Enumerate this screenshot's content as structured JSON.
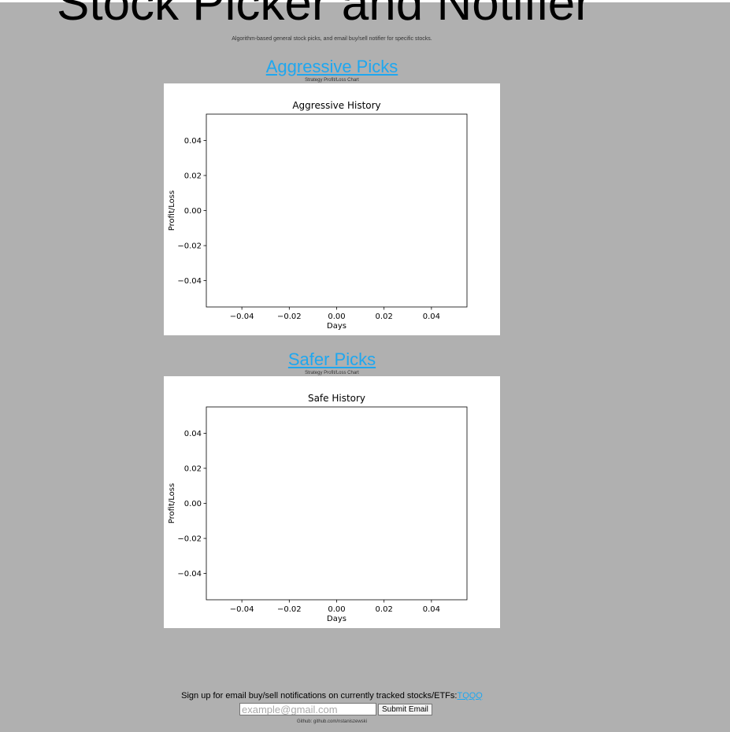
{
  "header": {
    "title": "Stock Picker and Notifier",
    "subtitle": "Algorithm-based general stock picks, and email buy/sell notifier for specific stocks."
  },
  "sections": [
    {
      "link_label": "Aggressive Picks",
      "caption": "Strategy Profit/Loss Chart"
    },
    {
      "link_label": "Safer Picks",
      "caption": "Strategy Profit/Loss Chart"
    }
  ],
  "chart_data": [
    {
      "type": "line",
      "title": "Aggressive History",
      "xlabel": "Days",
      "ylabel": "Profit/Loss",
      "xlim": [
        -0.055,
        0.055
      ],
      "ylim": [
        -0.055,
        0.055
      ],
      "xticks": [
        -0.04,
        -0.02,
        0.0,
        0.02,
        0.04
      ],
      "xtick_labels": [
        "−0.04",
        "−0.02",
        "0.00",
        "0.02",
        "0.04"
      ],
      "yticks": [
        -0.04,
        -0.02,
        0.0,
        0.02,
        0.04
      ],
      "ytick_labels": [
        "−0.04",
        "−0.02",
        "0.00",
        "0.02",
        "0.04"
      ],
      "series": [],
      "grid": false
    },
    {
      "type": "line",
      "title": "Safe History",
      "xlabel": "Days",
      "ylabel": "Profit/Loss",
      "xlim": [
        -0.055,
        0.055
      ],
      "ylim": [
        -0.055,
        0.055
      ],
      "xticks": [
        -0.04,
        -0.02,
        0.0,
        0.02,
        0.04
      ],
      "xtick_labels": [
        "−0.04",
        "−0.02",
        "0.00",
        "0.02",
        "0.04"
      ],
      "yticks": [
        -0.04,
        -0.02,
        0.0,
        0.02,
        0.04
      ],
      "ytick_labels": [
        "−0.04",
        "−0.02",
        "0.00",
        "0.02",
        "0.04"
      ],
      "series": [],
      "grid": false
    }
  ],
  "signup": {
    "text": "Sign up for email buy/sell notifications on currently tracked stocks/ETFs:",
    "ticker_link": "TQQQ",
    "email_placeholder": "example@gmail.com",
    "submit_label": "Submit Email"
  },
  "footer": {
    "text": "Github: github.com/nstaniszewski"
  },
  "colors": {
    "page_background": "#b0b0b0",
    "link": "#1ea7f0",
    "chart_background": "#ffffff"
  }
}
